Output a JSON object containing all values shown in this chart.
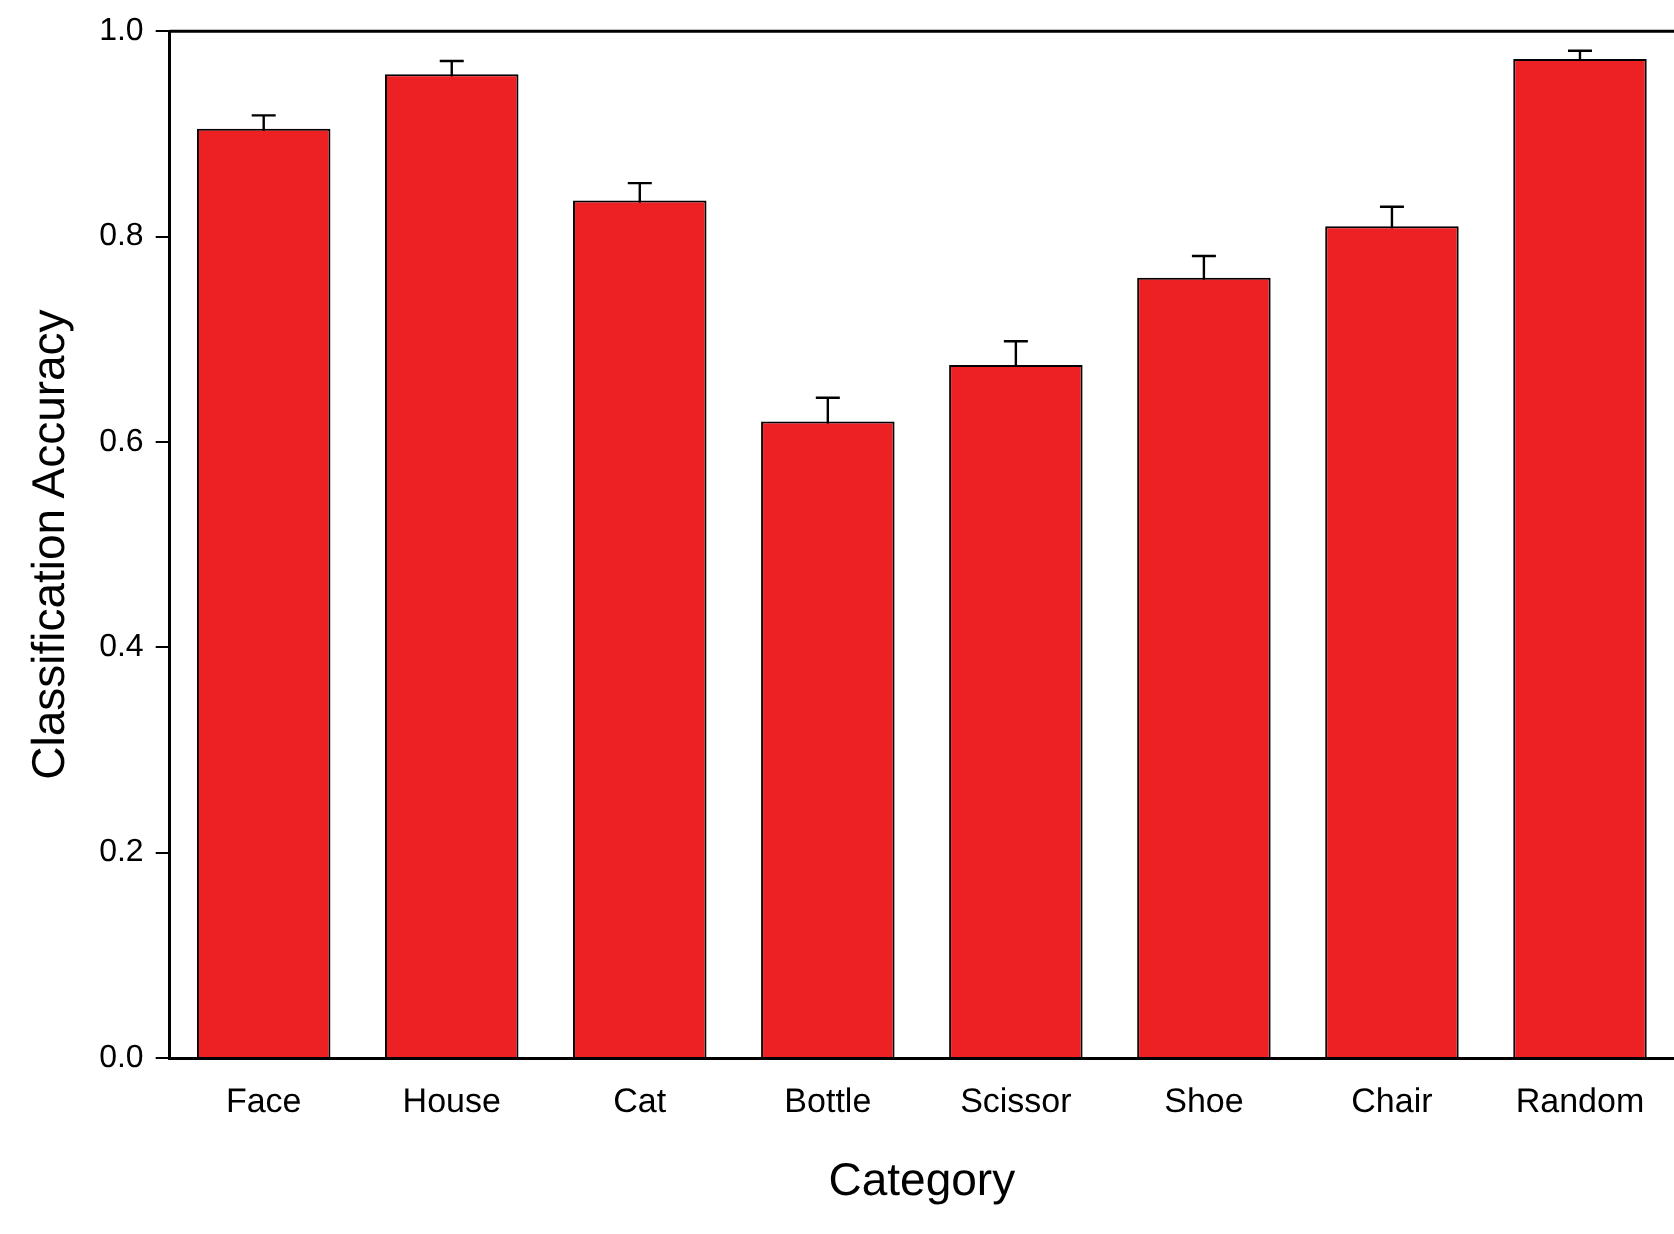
{
  "chart_data": {
    "type": "bar",
    "xlabel": "Category",
    "ylabel": "Classification Accuracy",
    "categories": [
      "Face",
      "House",
      "Cat",
      "Bottle",
      "Scissor",
      "Shoe",
      "Chair",
      "Random"
    ],
    "values": [
      0.905,
      0.958,
      0.835,
      0.62,
      0.675,
      0.76,
      0.81,
      0.973
    ],
    "errors": [
      0.013,
      0.013,
      0.017,
      0.023,
      0.023,
      0.021,
      0.019,
      0.008
    ],
    "color": "#ed2024",
    "ylim": [
      0,
      1
    ],
    "yticks": [
      {
        "value": 0,
        "label": "0.0"
      },
      {
        "value": 0.2,
        "label": "0.2"
      },
      {
        "value": 0.4,
        "label": "0.4"
      },
      {
        "value": 0.6,
        "label": "0.6"
      },
      {
        "value": 0.8,
        "label": "0.8"
      },
      {
        "value": 1,
        "label": "1.0"
      }
    ]
  }
}
